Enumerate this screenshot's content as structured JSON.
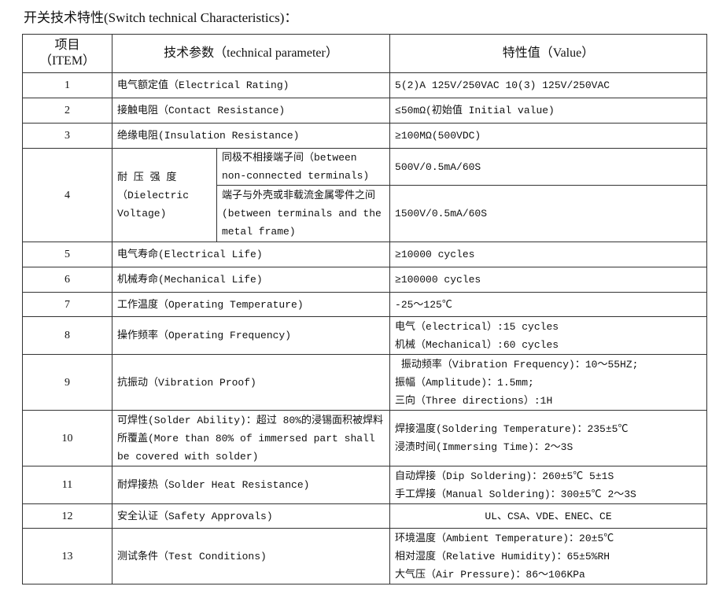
{
  "title": "开关技术特性(Switch technical Characteristics)：",
  "header": {
    "item": "项目\n（ITEM）",
    "param": "技术参数（technical parameter）",
    "value": "特性值（Value）"
  },
  "rows": [
    {
      "no": "1",
      "param": "电气额定值（Electrical Rating)",
      "value": [
        "5(2)A 125V/250VAC 10(3) 125V/250VAC"
      ]
    },
    {
      "no": "2",
      "param": "接触电阻（Contact  Resistance)",
      "value": [
        "≤50mΩ(初始值 Initial value)"
      ]
    },
    {
      "no": "3",
      "param": "绝缘电阻(Insulation Resistance)",
      "value": [
        "≥100MΩ(500VDC)"
      ]
    },
    {
      "no": "4",
      "param": "耐 压 强 度 （Dielectric Voltage)",
      "sub": [
        {
          "label": "同极不相接端子间（between non-connected terminals)",
          "value": "500V/0.5mA/60S"
        },
        {
          "label": "端子与外壳或非载流金属零件之间(between terminals and the metal frame)",
          "value": "1500V/0.5mA/60S"
        }
      ]
    },
    {
      "no": "5",
      "param": "电气寿命(Electrical Life)",
      "value": [
        "≥10000 cycles"
      ]
    },
    {
      "no": "6",
      "param": "机械寿命(Mechanical Life)",
      "value": [
        "≥100000 cycles"
      ]
    },
    {
      "no": "7",
      "param": "工作温度（Operating Temperature)",
      "value": [
        "-25～125℃"
      ]
    },
    {
      "no": "8",
      "param": "操作频率（Operating Frequency)",
      "value": [
        "电气（electrical）:15 cycles",
        "机械（Mechanical）:60 cycles"
      ]
    },
    {
      "no": "9",
      "param": "抗振动（Vibration Proof)",
      "value": [
        " 振动频率（Vibration Frequency)：10～55HZ;",
        "振幅（Amplitude)：1.5mm;",
        "三向（Three directions）:1H"
      ]
    },
    {
      "no": "10",
      "param": "可焊性(Solder Ability)：超过 80%的浸锡面积被焊料所覆盖(More than 80% of immersed part shall be covered with solder)",
      "value": [
        "焊接温度(Soldering Temperature)：235±5℃",
        "浸渍时间(Immersing Time)：2～3S"
      ]
    },
    {
      "no": "11",
      "param": "耐焊接热（Solder Heat Resistance)",
      "value": [
        "自动焊接（Dip Soldering)：260±5℃ 5±1S",
        "手工焊接（Manual Soldering)：300±5℃ 2～3S"
      ]
    },
    {
      "no": "12",
      "param": "安全认证（Safety Approvals)",
      "value": [
        "UL、CSA、VDE、ENEC、CE"
      ],
      "center": true
    },
    {
      "no": "13",
      "param": "测试条件（Test Conditions)",
      "value": [
        "环境温度（Ambient Temperature)：20±5℃",
        "相对湿度（Relative Humidity)：65±5%RH",
        "大气压（Air Pressure)：86～106KPa"
      ]
    }
  ]
}
